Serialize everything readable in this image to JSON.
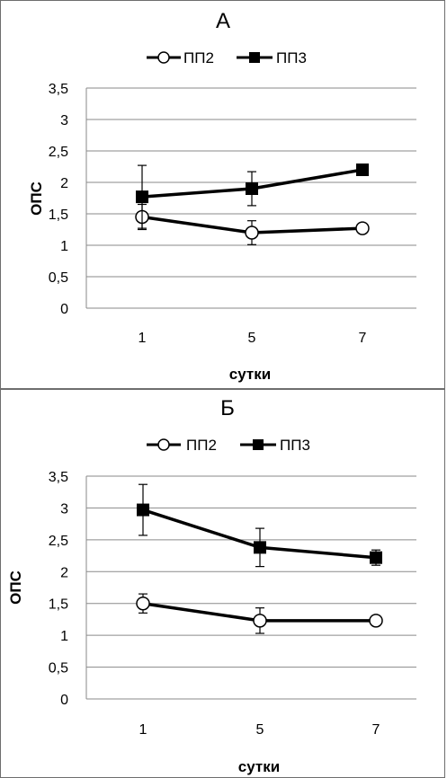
{
  "chart_data": [
    {
      "type": "line",
      "title": "А",
      "xlabel": "сутки",
      "ylabel": "ОПС",
      "categories": [
        "1",
        "5",
        "7"
      ],
      "ylim": [
        0,
        3.5
      ],
      "yticks": [
        "0",
        "0,5",
        "1",
        "1,5",
        "2",
        "2,5",
        "3",
        "3,5"
      ],
      "grid": true,
      "legend_position": "top",
      "series": [
        {
          "name": "ПП2",
          "marker": "open-circle",
          "values": [
            1.45,
            1.2,
            1.27
          ],
          "err": [
            0.2,
            0.19,
            null
          ]
        },
        {
          "name": "ПП3",
          "marker": "filled-square",
          "values": [
            1.77,
            1.9,
            2.2
          ],
          "err": [
            0.5,
            0.27,
            null
          ]
        }
      ]
    },
    {
      "type": "line",
      "title": "Б",
      "xlabel": "сутки",
      "ylabel": "ОПС",
      "categories": [
        "1",
        "5",
        "7"
      ],
      "ylim": [
        0,
        3.5
      ],
      "yticks": [
        "0",
        "0,5",
        "1",
        "1,5",
        "2",
        "2,5",
        "3",
        "3,5"
      ],
      "grid": true,
      "legend_position": "top",
      "series": [
        {
          "name": "ПП2",
          "marker": "open-circle",
          "values": [
            1.5,
            1.23,
            1.23
          ],
          "err": [
            0.15,
            0.2,
            null
          ]
        },
        {
          "name": "ПП3",
          "marker": "filled-square",
          "values": [
            2.97,
            2.38,
            2.22
          ],
          "err": [
            0.4,
            0.3,
            0.12
          ]
        }
      ]
    }
  ]
}
